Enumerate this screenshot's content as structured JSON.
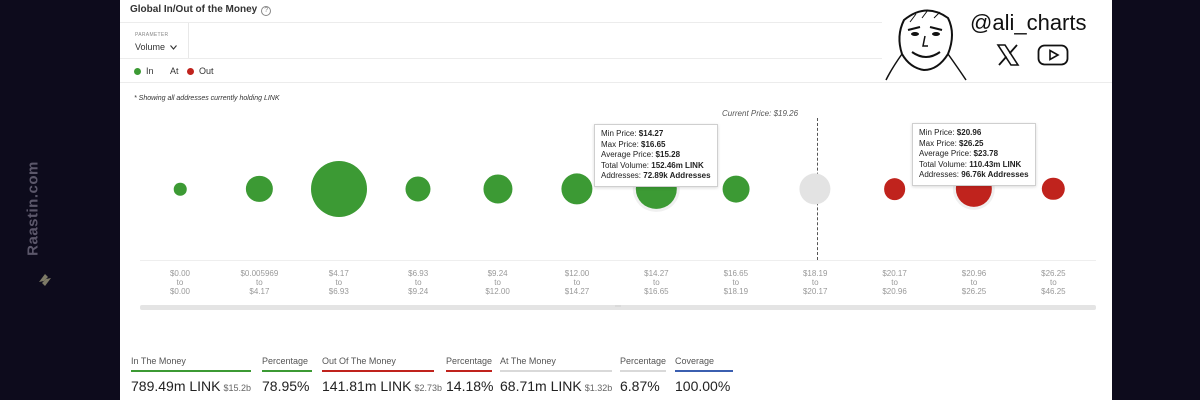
{
  "watermark": {
    "text": "Raastin.com"
  },
  "brand": {
    "handle": "@ali_charts"
  },
  "header": {
    "title": "Global In/Out of the Money",
    "parameter_label": "PARAMETER",
    "parameter_value": "Volume",
    "legend": [
      {
        "label": "In",
        "color": "#3c9a34"
      },
      {
        "label": "At",
        "color": "#e3e3e3"
      },
      {
        "label": "Out",
        "color": "#c0231d"
      }
    ]
  },
  "note": "* Showing all addresses currently holding LINK",
  "chart_data": {
    "type": "scatter",
    "current_price_label": "Current Price: $19.26",
    "categories": [
      {
        "from": "$0.00",
        "to": "$0.00",
        "status": "in",
        "volume_rel": 0.05
      },
      {
        "from": "$0.005969",
        "to": "$4.17",
        "status": "in",
        "volume_rel": 0.22
      },
      {
        "from": "$4.17",
        "to": "$6.93",
        "status": "in",
        "volume_rel": 1.0
      },
      {
        "from": "$6.93",
        "to": "$9.24",
        "status": "in",
        "volume_rel": 0.2
      },
      {
        "from": "$9.24",
        "to": "$12.00",
        "status": "in",
        "volume_rel": 0.27
      },
      {
        "from": "$12.00",
        "to": "$14.27",
        "status": "in",
        "volume_rel": 0.31
      },
      {
        "from": "$14.27",
        "to": "$16.65",
        "status": "in",
        "volume_rel": 0.52
      },
      {
        "from": "$16.65",
        "to": "$18.19",
        "status": "in",
        "volume_rel": 0.23
      },
      {
        "from": "$18.19",
        "to": "$20.17",
        "status": "at",
        "volume_rel": 0.31
      },
      {
        "from": "$20.17",
        "to": "$20.96",
        "status": "out",
        "volume_rel": 0.15
      },
      {
        "from": "$20.96",
        "to": "$26.25",
        "status": "out",
        "volume_rel": 0.42
      },
      {
        "from": "$26.25",
        "to": "$46.25",
        "status": "out",
        "volume_rel": 0.16
      }
    ],
    "x_separator": "to",
    "tooltips": [
      {
        "min_label": "Min Price: ",
        "min_value": "$14.27",
        "max_label": "Max Price: ",
        "max_value": "$16.65",
        "avg_label": "Average Price: ",
        "avg_value": "$15.28",
        "vol_label": "Total Volume: ",
        "vol_value": "152.46m LINK",
        "addr_label": "Addresses: ",
        "addr_value": "72.89k Addresses"
      },
      {
        "min_label": "Min Price: ",
        "min_value": "$20.96",
        "max_label": "Max Price: ",
        "max_value": "$26.25",
        "avg_label": "Average Price: ",
        "avg_value": "$23.78",
        "vol_label": "Total Volume: ",
        "vol_value": "110.43m LINK",
        "addr_label": "Addresses: ",
        "addr_value": "96.76k Addresses"
      }
    ]
  },
  "stats": [
    {
      "label": "In The Money",
      "value": "789.49m LINK",
      "sub": "$15.2b",
      "color": "#3c9a34"
    },
    {
      "label": "Percentage",
      "value": "78.95%",
      "sub": "",
      "color": "#3c9a34"
    },
    {
      "label": "Out Of The Money",
      "value": "141.81m LINK",
      "sub": "$2.73b",
      "color": "#c0231d"
    },
    {
      "label": "Percentage",
      "value": "14.18%",
      "sub": "",
      "color": "#c0231d"
    },
    {
      "label": "At The Money",
      "value": "68.71m LINK",
      "sub": "$1.32b",
      "color": "#d9d9d9"
    },
    {
      "label": "Percentage",
      "value": "6.87%",
      "sub": "",
      "color": "#d9d9d9"
    },
    {
      "label": "Coverage",
      "value": "100.00%",
      "sub": "",
      "color": "#3b5fb0"
    }
  ]
}
